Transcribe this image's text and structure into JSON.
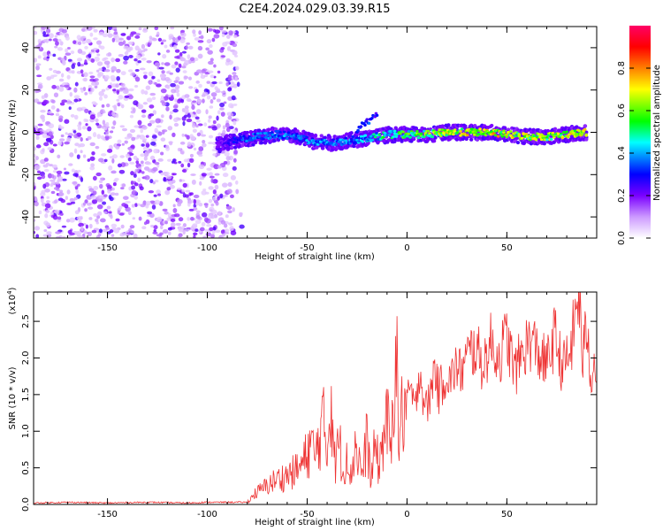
{
  "title": "C2E4.2024.029.03.39.R15",
  "chart_data": [
    {
      "type": "heatmap",
      "xlabel": "Height of straight line (km)",
      "ylabel": "Frequency (Hz)",
      "xlim": [
        -187,
        95
      ],
      "ylim": [
        -50,
        50
      ],
      "x_ticks": [
        -150,
        -100,
        -50,
        0,
        50
      ],
      "y_ticks": [
        -40,
        -20,
        0,
        20,
        40
      ],
      "x_tick_labels": [
        "-150",
        "-100",
        "-50",
        "0",
        "50"
      ],
      "y_tick_labels": [
        "-40",
        "-20",
        "0",
        "20",
        "40"
      ],
      "colorbar": {
        "label": "Normalized spectral amplitude",
        "range": [
          0.0,
          1.0
        ],
        "ticks": [
          0.0,
          0.2,
          0.4,
          0.6,
          0.8
        ],
        "tick_labels": [
          "0.0",
          "0.2",
          "0.4",
          "0.6",
          "0.8"
        ],
        "colors": [
          "#ffffff",
          "#cc99ff",
          "#7a00ff",
          "#0000ff",
          "#00ffff",
          "#00ff00",
          "#ffff00",
          "#ff7f00",
          "#ff0000",
          "#ff0066"
        ]
      },
      "noise_region": {
        "x_range": [
          -187,
          -85
        ],
        "y_range": [
          -50,
          50
        ],
        "amplitude": [
          0.05,
          0.25
        ]
      },
      "signal_ridge": {
        "x": [
          -95,
          -85,
          -75,
          -65,
          -55,
          -45,
          -38,
          -30,
          -22,
          -15,
          -8,
          0,
          10,
          20,
          30,
          40,
          50,
          60,
          70,
          80,
          90
        ],
        "y": [
          -6,
          -4,
          -2,
          -1,
          -2,
          -5,
          -5,
          -4,
          -3,
          -2,
          -1,
          -1,
          -1,
          0,
          0,
          0,
          -1,
          -2,
          -2,
          -1,
          0
        ],
        "amplitude": [
          0.2,
          0.35,
          0.4,
          0.42,
          0.4,
          0.42,
          0.4,
          0.42,
          0.45,
          0.5,
          0.55,
          0.6,
          0.65,
          0.72,
          0.75,
          0.78,
          0.75,
          0.7,
          0.7,
          0.72,
          0.78
        ]
      },
      "side_branch": {
        "x": [
          -25,
          -20,
          -15
        ],
        "y": [
          1,
          5,
          8
        ],
        "amplitude": [
          0.3,
          0.35,
          0.3
        ]
      }
    },
    {
      "type": "line",
      "xlabel": "Height of straight line (km)",
      "ylabel": "SNR (10 * v/v)",
      "y_scale_label": "(x10",
      "y_scale_exponent": "4",
      "y_scale_suffix": ")",
      "xlim": [
        -187,
        95
      ],
      "ylim": [
        0,
        2.9
      ],
      "x_ticks": [
        -150,
        -100,
        -50,
        0,
        50
      ],
      "y_ticks": [
        0.0,
        0.5,
        1.0,
        1.5,
        2.0,
        2.5
      ],
      "x_tick_labels": [
        "-150",
        "-100",
        "-50",
        "0",
        "50"
      ],
      "y_tick_labels": [
        "0.0",
        "0.5",
        "1.0",
        "1.5",
        "2.0",
        "2.5"
      ],
      "series": [
        {
          "color": "#ee3333",
          "x": [
            -187,
            -170,
            -150,
            -130,
            -110,
            -100,
            -90,
            -80,
            -76,
            -72,
            -68,
            -64,
            -60,
            -56,
            -52,
            -48,
            -46,
            -44,
            -42,
            -40,
            -38,
            -36,
            -34,
            -32,
            -30,
            -28,
            -26,
            -24,
            -22,
            -20,
            -18,
            -16,
            -14,
            -12,
            -10,
            -8,
            -6,
            -4,
            -2,
            0,
            2,
            4,
            6,
            8,
            10,
            12,
            14,
            16,
            18,
            20,
            22,
            24,
            26,
            28,
            30,
            34,
            38,
            42,
            46,
            50,
            54,
            58,
            62,
            66,
            70,
            74,
            78,
            82,
            86,
            88,
            90,
            92,
            95
          ],
          "y": [
            0.02,
            0.03,
            0.02,
            0.03,
            0.02,
            0.03,
            0.03,
            0.03,
            0.15,
            0.22,
            0.3,
            0.35,
            0.4,
            0.45,
            0.55,
            0.85,
            0.6,
            0.95,
            1.1,
            0.7,
            1.6,
            0.5,
            0.9,
            0.4,
            0.8,
            0.35,
            0.85,
            0.6,
            0.4,
            0.95,
            0.3,
            0.8,
            0.5,
            0.9,
            1.2,
            0.6,
            2.45,
            0.9,
            1.3,
            1.35,
            1.6,
            1.2,
            1.9,
            1.5,
            1.3,
            1.55,
            1.9,
            1.5,
            1.7,
            1.8,
            1.65,
            1.9,
            1.8,
            1.85,
            2.0,
            2.15,
            1.9,
            2.2,
            2.0,
            2.3,
            1.8,
            2.1,
            2.25,
            2.05,
            1.9,
            2.3,
            1.85,
            2.1,
            2.9,
            1.95,
            2.5,
            1.8,
            1.95
          ]
        }
      ]
    }
  ]
}
